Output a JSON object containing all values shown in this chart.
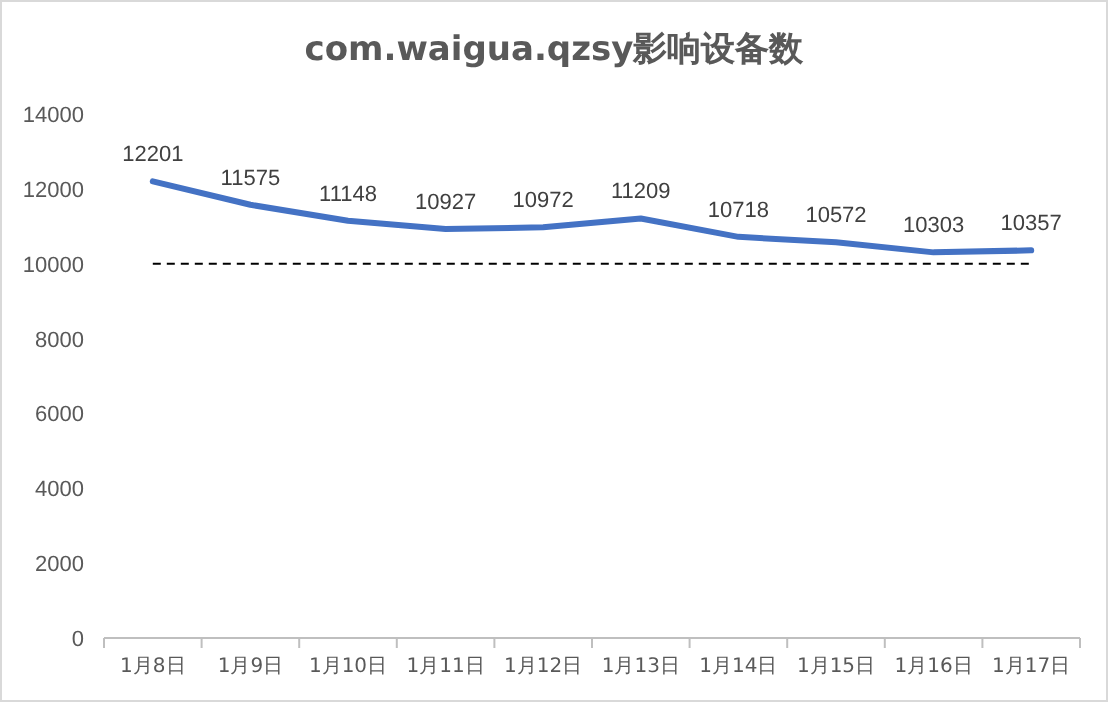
{
  "chart_data": {
    "type": "line",
    "title": "com.waigua.qzsy影响设备数",
    "categories": [
      "1月8日",
      "1月9日",
      "1月10日",
      "1月11日",
      "1月12日",
      "1月13日",
      "1月14日",
      "1月15日",
      "1月16日",
      "1月17日"
    ],
    "series": [
      {
        "color": "#4472c4",
        "values": [
          12201,
          11575,
          11148,
          10927,
          10972,
          11209,
          10718,
          10572,
          10303,
          10357
        ]
      }
    ],
    "ylim": [
      0,
      14000
    ],
    "yticks": [
      0,
      2000,
      4000,
      6000,
      8000,
      10000,
      12000,
      14000
    ],
    "ref_lines": [
      {
        "axis": "y",
        "value": 10000,
        "color": "#000000",
        "line_style": "dashed"
      }
    ],
    "data_labels": true
  }
}
